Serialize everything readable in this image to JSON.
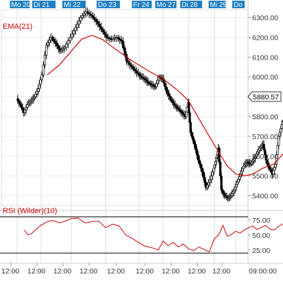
{
  "chart_data": [
    {
      "type": "candlestick",
      "indicator_label": "EMA(21)",
      "last_price_label": "5880.57",
      "ylim": [
        5350,
        6340
      ],
      "y_ticks": [
        5400,
        5500,
        5600,
        5700,
        5800,
        5900,
        6000,
        6100,
        6200,
        6300
      ],
      "y_tick_labels": [
        "5400.00",
        "5500.00",
        "5600.00",
        "5700.00",
        "5800.00",
        "5900.00",
        "6000.00",
        "6100.00",
        "6200.00",
        "6300.00"
      ],
      "day_labels": [
        "Mo 20",
        "Di 21",
        "Mi 22",
        "Do 23",
        "Fr 24",
        "Mo 27",
        "Di 28",
        "Mi 29",
        "Do"
      ],
      "x_tick_labels": [
        "12:00",
        "12:00",
        "12:00",
        "12:00",
        "12:00",
        "12:00",
        "12:00",
        "12:00",
        "12:00",
        "09:00:00"
      ],
      "price_path": [
        [
          0,
          5890
        ],
        [
          0.15,
          5860
        ],
        [
          0.3,
          5820
        ],
        [
          0.45,
          5860
        ],
        [
          0.6,
          5880
        ],
        [
          0.75,
          5900
        ],
        [
          0.9,
          5940
        ],
        [
          1.05,
          6010
        ],
        [
          1.2,
          6160
        ],
        [
          1.35,
          6200
        ],
        [
          1.5,
          6170
        ],
        [
          1.65,
          6130
        ],
        [
          1.8,
          6150
        ],
        [
          2.0,
          6200
        ],
        [
          2.15,
          6250
        ],
        [
          2.3,
          6300
        ],
        [
          2.45,
          6330
        ],
        [
          2.6,
          6310
        ],
        [
          2.75,
          6280
        ],
        [
          2.9,
          6240
        ],
        [
          3.05,
          6200
        ],
        [
          3.2,
          6190
        ],
        [
          3.35,
          6200
        ],
        [
          3.5,
          6180
        ],
        [
          3.65,
          6080
        ],
        [
          3.8,
          6050
        ],
        [
          3.95,
          6020
        ],
        [
          4.1,
          6000
        ],
        [
          4.25,
          5990
        ],
        [
          4.4,
          5970
        ],
        [
          4.55,
          5960
        ],
        [
          4.7,
          5950
        ],
        [
          4.85,
          6000
        ],
        [
          5.0,
          5990
        ],
        [
          5.15,
          5930
        ],
        [
          5.3,
          5890
        ],
        [
          5.45,
          5860
        ],
        [
          5.6,
          5840
        ],
        [
          5.75,
          5820
        ],
        [
          5.9,
          5800
        ],
        [
          6.0,
          5870
        ],
        [
          6.1,
          5720
        ],
        [
          6.25,
          5660
        ],
        [
          6.4,
          5580
        ],
        [
          6.55,
          5520
        ],
        [
          6.7,
          5440
        ],
        [
          6.85,
          5480
        ],
        [
          7.0,
          5540
        ],
        [
          7.1,
          5590
        ],
        [
          7.2,
          5640
        ],
        [
          7.35,
          5430
        ],
        [
          7.5,
          5400
        ],
        [
          7.65,
          5390
        ],
        [
          7.8,
          5400
        ],
        [
          7.95,
          5430
        ],
        [
          8.1,
          5470
        ],
        [
          8.25,
          5510
        ],
        [
          8.4,
          5550
        ],
        [
          8.55,
          5570
        ],
        [
          8.7,
          5560
        ],
        [
          8.85,
          5580
        ],
        [
          9.0,
          5610
        ],
        [
          9.15,
          5640
        ],
        [
          9.3,
          5660
        ],
        [
          9.45,
          5580
        ],
        [
          9.6,
          5540
        ],
        [
          9.75,
          5510
        ],
        [
          9.9,
          5560
        ],
        [
          10.05,
          5700
        ],
        [
          10.2,
          5760
        ],
        [
          10.35,
          5800
        ],
        [
          10.5,
          5840
        ],
        [
          10.65,
          5860
        ],
        [
          10.8,
          5880
        ],
        [
          10.9,
          5870
        ],
        [
          11.0,
          5880
        ]
      ],
      "ema_path": [
        [
          1.2,
          6010
        ],
        [
          1.6,
          6060
        ],
        [
          2.0,
          6130
        ],
        [
          2.3,
          6190
        ],
        [
          2.6,
          6210
        ],
        [
          2.9,
          6190
        ],
        [
          3.3,
          6140
        ],
        [
          3.8,
          6080
        ],
        [
          4.4,
          6030
        ],
        [
          5.0,
          5990
        ],
        [
          5.6,
          5930
        ],
        [
          6.0,
          5880
        ],
        [
          6.4,
          5790
        ],
        [
          6.8,
          5700
        ],
        [
          7.2,
          5620
        ],
        [
          7.6,
          5550
        ],
        [
          8.0,
          5510
        ],
        [
          8.4,
          5500
        ],
        [
          8.8,
          5510
        ],
        [
          9.3,
          5540
        ],
        [
          9.8,
          5560
        ],
        [
          10.3,
          5620
        ],
        [
          10.7,
          5690
        ],
        [
          11.0,
          5770
        ]
      ]
    },
    {
      "type": "line",
      "indicator_label": "RSI (Wilder)(10)",
      "ylim": [
        10,
        85
      ],
      "y_ticks": [
        25,
        50,
        75
      ],
      "y_tick_labels": [
        "25.00",
        "50.00",
        "75.00"
      ],
      "reference_lines": [
        20,
        80
      ],
      "x": [
        0.3,
        0.45,
        0.6,
        0.8,
        1.0,
        1.2,
        1.4,
        1.6,
        1.8,
        2.0,
        2.2,
        2.4,
        2.6,
        2.8,
        3.0,
        3.2,
        3.4,
        3.6,
        3.8,
        4.0,
        4.2,
        4.4,
        4.6,
        4.8,
        5.0,
        5.2,
        5.4,
        5.6,
        5.8,
        6.0,
        6.2,
        6.4,
        6.6,
        6.8,
        7.0,
        7.2,
        7.4,
        7.6,
        7.8,
        8.0,
        8.2,
        8.4,
        8.6,
        8.8,
        9.0,
        9.2,
        9.4,
        9.6,
        9.8,
        10.0,
        10.2,
        10.4,
        10.6,
        10.8,
        11.0
      ],
      "values": [
        58,
        50,
        52,
        60,
        66,
        72,
        74,
        70,
        73,
        77,
        78,
        70,
        72,
        73,
        62,
        68,
        65,
        50,
        44,
        37,
        32,
        30,
        28,
        25,
        40,
        32,
        38,
        30,
        35,
        27,
        24,
        30,
        26,
        22,
        44,
        50,
        66,
        48,
        51,
        56,
        53,
        58,
        62,
        65,
        59,
        62,
        66,
        60,
        58,
        64,
        68,
        65,
        70,
        62,
        64
      ]
    }
  ]
}
